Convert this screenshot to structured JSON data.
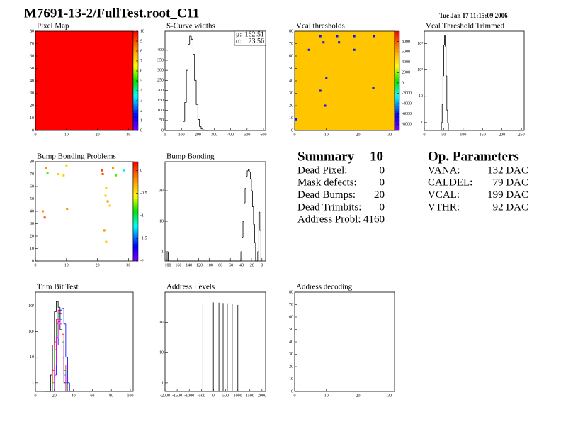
{
  "header": {
    "title": "M7691-13-2/FullTest.root_C11",
    "date": "Tue Jan 17 11:15:09 2006"
  },
  "chart_data": [
    {
      "type": "heatmap",
      "title": "Pixel Map",
      "xlim": [
        0,
        31.5
      ],
      "ylim": [
        0,
        80
      ],
      "xticks": [
        0,
        10,
        20,
        30
      ],
      "yticks": [
        0,
        10,
        20,
        30,
        40,
        50,
        60,
        70,
        80
      ],
      "zlim": [
        0,
        10
      ],
      "zticks": [
        0,
        1,
        2,
        3,
        4,
        5,
        6,
        7,
        8,
        9,
        10
      ],
      "fill_value": 10
    },
    {
      "type": "histogram",
      "title": "S-Curve widths",
      "xlim": [
        0,
        613
      ],
      "ylim": [
        0,
        495
      ],
      "xticks": [
        0,
        100,
        200,
        300,
        400,
        500,
        600
      ],
      "yticks": [
        0,
        50,
        100,
        150,
        200,
        250,
        300,
        350,
        400
      ],
      "bins": [
        80,
        90,
        100,
        110,
        120,
        130,
        140,
        150,
        160,
        170,
        180,
        190,
        200,
        210,
        220,
        230,
        240,
        250,
        260
      ],
      "series": [
        {
          "color": "#000000",
          "values": [
            0,
            2,
            12,
            45,
            140,
            300,
            430,
            470,
            455,
            380,
            250,
            130,
            55,
            20,
            8,
            3,
            1,
            0
          ]
        }
      ],
      "stats": [
        {
          "label": "μ:",
          "value": 162.51
        },
        {
          "label": "σ:",
          "value": 23.56
        }
      ]
    },
    {
      "type": "heatmap",
      "title": "Vcal thresholds",
      "xlim": [
        0,
        31.5
      ],
      "ylim": [
        0,
        80
      ],
      "xticks": [
        0,
        10,
        20,
        30
      ],
      "yticks": [
        0,
        10,
        20,
        30,
        40,
        50,
        60,
        70,
        80
      ],
      "zlim": [
        -9200,
        10000
      ],
      "zticks": [
        8000,
        6000,
        4000,
        2000,
        0,
        -2000,
        -4000,
        -6000,
        -8000
      ],
      "fill_value": 5000,
      "points": {
        "x": [
          8.1,
          13.4,
          18.8,
          25,
          9.1,
          14,
          18.8,
          10,
          8.1,
          24.8,
          9.6,
          0.4,
          4.5
        ],
        "y": [
          76,
          76,
          76,
          76,
          71,
          71,
          65,
          42,
          32,
          34,
          20,
          9,
          65
        ],
        "z": [
          -6000,
          -6000,
          -6000,
          -6000,
          -6000,
          -6000,
          -6000,
          -6000,
          -6000,
          -6000,
          -6000,
          -6000,
          -6000
        ]
      }
    },
    {
      "type": "histogram",
      "title": "Vcal Threshold Trimmed",
      "log_y": true,
      "xlim": [
        0,
        257
      ],
      "ylim": [
        0.5,
        3000
      ],
      "xticks": [
        0,
        50,
        100,
        150,
        200,
        250
      ],
      "yticks": [
        1,
        10,
        {
          "value": 100,
          "label": "10²"
        },
        {
          "value": 1000,
          "label": "10³"
        }
      ],
      "bins": [
        44,
        46,
        48,
        50,
        52,
        54,
        56,
        58,
        60,
        62,
        64
      ],
      "series": [
        {
          "color": "#000000",
          "values": [
            1,
            5,
            60,
            900,
            2000,
            800,
            60,
            3,
            1,
            0
          ]
        }
      ]
    },
    {
      "type": "heatmap",
      "title": "Bump Bonding Problems",
      "xlim": [
        0,
        31.5
      ],
      "ylim": [
        0,
        80
      ],
      "xticks": [
        0,
        10,
        20,
        30
      ],
      "yticks": [
        0,
        10,
        20,
        30,
        40,
        50,
        60,
        70,
        80
      ],
      "zlim": [
        -2,
        0.2
      ],
      "zticks": [
        0,
        -0.5,
        -1,
        -1.5,
        -2
      ],
      "points": {
        "x": [
          3.5,
          3.9,
          10,
          7.4,
          9.1,
          21.5,
          21.7,
          25,
          25.9,
          28.5,
          22.8,
          22.6,
          23.3,
          24,
          10.2,
          2.4,
          3,
          22.2,
          22.8
        ],
        "y": [
          75,
          71,
          77,
          70,
          69,
          73,
          70,
          74.6,
          69,
          73,
          59,
          52.6,
          48,
          44.6,
          42,
          40,
          35,
          24.6,
          15.4
        ],
        "z": [
          -0.2,
          -0.8,
          -0.4,
          -0.4,
          -0.4,
          0,
          0,
          -0.2,
          -0.8,
          -1.2,
          -0.4,
          -0.4,
          -0.2,
          -0.4,
          -0.2,
          -0.2,
          0,
          -0.2,
          -0.4
        ]
      }
    },
    {
      "type": "histogram",
      "title": "Bump Bonding",
      "log_y": true,
      "xlim": [
        -184,
        7
      ],
      "ylim": [
        0.5,
        900
      ],
      "xticks": [
        -180,
        -160,
        -140,
        -120,
        -100,
        -80,
        -60,
        -40,
        -20,
        0
      ],
      "yticks": [
        1,
        10,
        {
          "value": 100,
          "label": "10²"
        }
      ],
      "bins": [
        -180,
        -178,
        -40,
        -38,
        -36,
        -34,
        -32,
        -30,
        -28,
        -26,
        -24,
        -22,
        -20,
        -18,
        -16,
        -14,
        -12,
        -10,
        -8,
        -6,
        -4,
        -2,
        0
      ],
      "series": [
        {
          "color": "#000000",
          "values": [
            1,
            0,
            1,
            3,
            10,
            40,
            120,
            300,
            450,
            500,
            420,
            250,
            100,
            30,
            8,
            2,
            0,
            0,
            1,
            20,
            5,
            0
          ]
        }
      ]
    },
    {
      "type": "histogram",
      "title": "Trim Bit Test",
      "log_y": true,
      "xlim": [
        0,
        103
      ],
      "ylim": [
        0.46,
        3500
      ],
      "xticks": [
        0,
        20,
        40,
        60,
        80,
        100
      ],
      "yticks": [
        1,
        10,
        {
          "value": 100,
          "label": "10²"
        },
        {
          "value": 1000,
          "label": "10³"
        }
      ],
      "bins": [
        10,
        12,
        14,
        16,
        18,
        20,
        22,
        24,
        26,
        28,
        30,
        32,
        34,
        36,
        38,
        40
      ],
      "series": [
        {
          "color": "#000000",
          "values": [
            0,
            0,
            0,
            2,
            30,
            600,
            1500,
            900,
            120,
            10,
            1,
            0,
            0,
            0,
            0
          ]
        },
        {
          "color": "#ff0000",
          "values": [
            0,
            0,
            0,
            0,
            3,
            40,
            300,
            700,
            500,
            80,
            5,
            0,
            0,
            0,
            0
          ]
        },
        {
          "color": "#00c000",
          "values": [
            0,
            0,
            0,
            0,
            1,
            20,
            200,
            500,
            300,
            40,
            3,
            1,
            0,
            0,
            0
          ]
        },
        {
          "color": "#0000ff",
          "values": [
            0,
            0,
            0,
            0,
            0,
            2,
            30,
            250,
            700,
            800,
            200,
            10,
            1,
            0,
            0
          ]
        },
        {
          "color": "#ff00ff",
          "values": [
            0,
            0,
            0,
            0,
            0,
            5,
            60,
            300,
            200,
            30,
            2,
            0,
            0,
            0,
            0
          ]
        }
      ]
    },
    {
      "type": "spikes",
      "title": "Address Levels",
      "log_y": true,
      "xlim": [
        -2000,
        2150
      ],
      "ylim": [
        0.52,
        1000
      ],
      "xticks": [
        -2000,
        -1500,
        -1000,
        -500,
        0,
        500,
        1000,
        1500,
        2000
      ],
      "yticks": [
        1,
        10,
        {
          "value": 100,
          "label": "10²"
        }
      ],
      "x": [
        -441,
        -7,
        224,
        397,
        570,
        773,
        1004
      ],
      "values": [
        420,
        460,
        450,
        440,
        430,
        400,
        380
      ]
    },
    {
      "type": "heatmap",
      "title": "Address decoding",
      "xlim": [
        0,
        31.5
      ],
      "ylim": [
        0,
        80
      ],
      "xticks": [
        0,
        10,
        20,
        30
      ],
      "yticks": [
        0,
        10,
        20,
        30,
        40,
        50,
        60,
        70,
        80
      ]
    }
  ],
  "summary": {
    "title": "Summary",
    "count": 10,
    "rows": [
      {
        "label": "Dead Pixel:",
        "value": 0
      },
      {
        "label": "Mask defects:",
        "value": 0
      },
      {
        "label": "Dead Bumps:",
        "value": 20
      },
      {
        "label": "Dead Trimbits:",
        "value": 0
      },
      {
        "label": "Address Probl:",
        "value": 4160
      }
    ]
  },
  "parameters": {
    "title": "Op. Parameters",
    "rows": [
      {
        "label": "VANA:",
        "value": "132 DAC"
      },
      {
        "label": "CALDEL:",
        "value": "79 DAC"
      },
      {
        "label": "VCAL:",
        "value": "199 DAC"
      },
      {
        "label": "VTHR:",
        "value": "92 DAC"
      }
    ]
  }
}
